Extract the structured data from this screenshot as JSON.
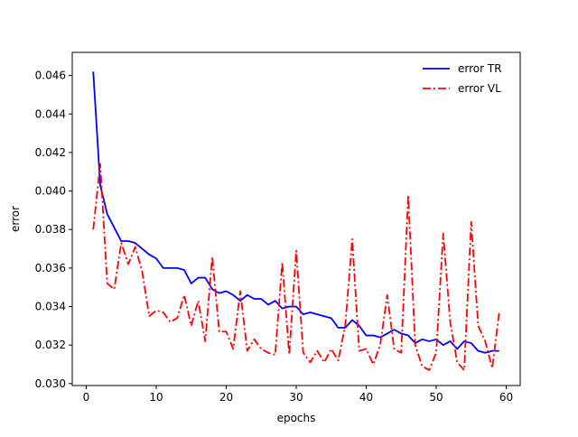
{
  "chart_data": {
    "type": "line",
    "title": "",
    "xlabel": "epochs",
    "ylabel": "error",
    "xlim": [
      -2,
      62
    ],
    "ylim": [
      0.0299,
      0.0472
    ],
    "xticks": [
      0,
      10,
      20,
      30,
      40,
      50,
      60
    ],
    "yticks": [
      0.03,
      0.032,
      0.034,
      0.036,
      0.038,
      0.04,
      0.042,
      0.044,
      0.046
    ],
    "xtick_labels": [
      "0",
      "10",
      "20",
      "30",
      "40",
      "50",
      "60"
    ],
    "ytick_labels": [
      "0.030",
      "0.032",
      "0.034",
      "0.036",
      "0.038",
      "0.040",
      "0.042",
      "0.044",
      "0.046"
    ],
    "grid": false,
    "legend_position": "top-right",
    "x": [
      1,
      2,
      3,
      4,
      5,
      6,
      7,
      8,
      9,
      10,
      11,
      12,
      13,
      14,
      15,
      16,
      17,
      18,
      19,
      20,
      21,
      22,
      23,
      24,
      25,
      26,
      27,
      28,
      29,
      30,
      31,
      32,
      33,
      34,
      35,
      36,
      37,
      38,
      39,
      40,
      41,
      42,
      43,
      44,
      45,
      46,
      47,
      48,
      49,
      50,
      51,
      52,
      53,
      54,
      55,
      56,
      57,
      58,
      59
    ],
    "series": [
      {
        "name": "error TR",
        "color": "#0000ff",
        "style": "solid",
        "values": [
          0.0462,
          0.0403,
          0.0388,
          0.0381,
          0.0374,
          0.0374,
          0.0373,
          0.037,
          0.0367,
          0.0365,
          0.036,
          0.036,
          0.036,
          0.0359,
          0.0352,
          0.0355,
          0.0355,
          0.0349,
          0.0347,
          0.0348,
          0.0346,
          0.0343,
          0.0346,
          0.0344,
          0.0344,
          0.0341,
          0.0343,
          0.0339,
          0.034,
          0.034,
          0.0336,
          0.0337,
          0.0336,
          0.0335,
          0.0334,
          0.0329,
          0.0329,
          0.0333,
          0.033,
          0.0325,
          0.0325,
          0.0324,
          0.0326,
          0.0328,
          0.0326,
          0.0325,
          0.0321,
          0.0323,
          0.0322,
          0.0323,
          0.032,
          0.0322,
          0.0318,
          0.0322,
          0.0321,
          0.0317,
          0.0316,
          0.0317,
          0.0317
        ]
      },
      {
        "name": "error VL",
        "color": "#ff0000",
        "style": "dashdot",
        "values": [
          0.038,
          0.0414,
          0.0352,
          0.0349,
          0.0373,
          0.0362,
          0.0371,
          0.0358,
          0.0335,
          0.0338,
          0.0337,
          0.0332,
          0.0334,
          0.0346,
          0.033,
          0.0343,
          0.0322,
          0.0366,
          0.0327,
          0.0327,
          0.0318,
          0.0348,
          0.0317,
          0.0323,
          0.0318,
          0.0316,
          0.0315,
          0.0363,
          0.0315,
          0.0369,
          0.0316,
          0.0311,
          0.0317,
          0.0311,
          0.0318,
          0.0312,
          0.033,
          0.0375,
          0.0317,
          0.0318,
          0.031,
          0.032,
          0.0346,
          0.0318,
          0.0316,
          0.0398,
          0.032,
          0.0309,
          0.0307,
          0.0316,
          0.0378,
          0.0332,
          0.0311,
          0.0307,
          0.0384,
          0.033,
          0.0322,
          0.0308,
          0.0337
        ]
      }
    ]
  }
}
